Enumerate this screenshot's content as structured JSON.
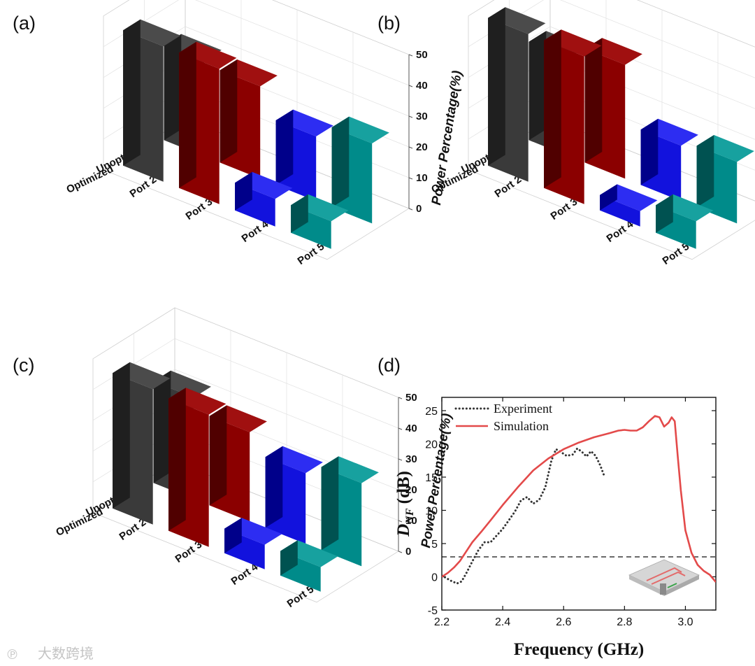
{
  "figure": {
    "watermark": "大数跨境",
    "colors": {
      "Port 2": [
        "#b8b8b8",
        "#3a3a3a",
        "#1f1f1f",
        "#4b4b4b"
      ],
      "Port 3": [
        "#7a0000",
        "#8b0000",
        "#500000",
        "#a01010"
      ],
      "Port 4": [
        "#0000ff",
        "#1212dd",
        "#00008a",
        "#2d2df2"
      ],
      "Port 5": [
        "#00706f",
        "#008b8a",
        "#005251",
        "#17a19f"
      ],
      "experiment": "#333333",
      "simulation": "#e34a4a",
      "threshold": "#111111"
    }
  },
  "chart_data": [
    {
      "panel": "(a)",
      "type": "bar3d",
      "zlabel": "Power Percentage(%)",
      "zticks": [
        "0",
        "10",
        "20",
        "30",
        "40",
        "50"
      ],
      "zlim": [
        0,
        50
      ],
      "rows": [
        "Unoptimized",
        "Optimized"
      ],
      "cols": [
        "Port 2",
        "Port 3",
        "Port 4",
        "Port 5"
      ],
      "series": [
        {
          "name": "Unoptimized",
          "values": [
            31,
            30,
            21,
            26
          ]
        },
        {
          "name": "Optimized",
          "values": [
            44,
            44,
            9,
            9
          ]
        }
      ]
    },
    {
      "panel": "(b)",
      "type": "bar3d",
      "zlabel": "Power Percentage(%)",
      "zticks": [
        "0",
        "10",
        "20",
        "30",
        "40",
        "50"
      ],
      "zlim": [
        0,
        50
      ],
      "rows": [
        "Unoptimized",
        "Optimized"
      ],
      "cols": [
        "Port 2",
        "Port 3",
        "Port 4",
        "Port 5"
      ],
      "series": [
        {
          "name": "Unoptimized",
          "values": [
            32,
            37,
            18,
            20
          ]
        },
        {
          "name": "Optimized",
          "values": [
            48,
            48,
            5,
            9
          ]
        }
      ]
    },
    {
      "panel": "(c)",
      "type": "bar3d",
      "zlabel": "Power Percentage(%)",
      "zticks": [
        "0",
        "10",
        "20",
        "30",
        "40",
        "50"
      ],
      "zlim": [
        0,
        50
      ],
      "rows": [
        "Unoptimized",
        "Optimized"
      ],
      "cols": [
        "Port 2",
        "Port 3",
        "Port 4",
        "Port 5"
      ],
      "series": [
        {
          "name": "Unoptimized",
          "values": [
            33,
            29,
            23,
            27
          ]
        },
        {
          "name": "Optimized",
          "values": [
            44,
            43,
            8,
            8
          ]
        }
      ]
    },
    {
      "panel": "(d)",
      "type": "line",
      "xlabel": "Frequency (GHz)",
      "ylabel_main": "D",
      "ylabel_sub": "NF",
      "ylabel_unit": " (dB)",
      "xlim": [
        2.2,
        3.1
      ],
      "ylim": [
        -5,
        27
      ],
      "xticks": [
        "2.2",
        "2.4",
        "2.6",
        "2.8",
        "3.0"
      ],
      "yticks": [
        "-5",
        "0",
        "5",
        "10",
        "15",
        "20",
        "25"
      ],
      "threshold": 3,
      "series": [
        {
          "name": "Experiment",
          "style": "dotted",
          "x": [
            2.2,
            2.215,
            2.23,
            2.25,
            2.265,
            2.28,
            2.3,
            2.32,
            2.34,
            2.36,
            2.38,
            2.4,
            2.42,
            2.44,
            2.46,
            2.48,
            2.5,
            2.52,
            2.54,
            2.56,
            2.575,
            2.59,
            2.61,
            2.63,
            2.645,
            2.66,
            2.675,
            2.69,
            2.705,
            2.72,
            2.735
          ],
          "y": [
            0.2,
            -0.2,
            -0.6,
            -1.0,
            -0.7,
            0.5,
            2.3,
            4.0,
            5.2,
            5.2,
            6.2,
            7.2,
            8.5,
            9.8,
            11.5,
            12.0,
            11.0,
            11.6,
            13.5,
            17.5,
            19.2,
            18.8,
            18.2,
            18.4,
            19.3,
            18.8,
            18.1,
            18.9,
            18.2,
            16.8,
            15.0
          ]
        },
        {
          "name": "Simulation",
          "style": "solid",
          "x": [
            2.2,
            2.22,
            2.24,
            2.26,
            2.28,
            2.3,
            2.33,
            2.36,
            2.4,
            2.45,
            2.5,
            2.55,
            2.6,
            2.65,
            2.7,
            2.75,
            2.78,
            2.8,
            2.82,
            2.84,
            2.86,
            2.88,
            2.9,
            2.915,
            2.93,
            2.945,
            2.955,
            2.965,
            2.975,
            2.985,
            3.0,
            3.02,
            3.04,
            3.06,
            3.08,
            3.1
          ],
          "y": [
            0.0,
            0.6,
            1.4,
            2.4,
            3.8,
            5.2,
            6.8,
            8.5,
            10.8,
            13.5,
            16.0,
            17.8,
            19.2,
            20.2,
            21.0,
            21.6,
            22.0,
            22.1,
            22.0,
            22.0,
            22.5,
            23.4,
            24.2,
            24.0,
            22.6,
            23.2,
            24.0,
            23.4,
            18.0,
            13.0,
            7.0,
            3.6,
            1.8,
            0.9,
            0.3,
            -0.8
          ]
        }
      ]
    }
  ]
}
